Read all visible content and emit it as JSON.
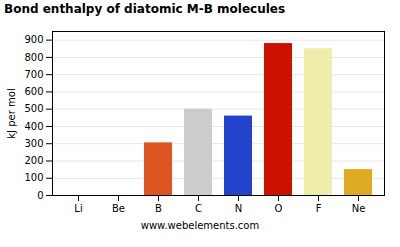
{
  "chart_data": {
    "type": "bar",
    "title": "Bond enthalpy of diatomic M-B molecules",
    "y_label": "kJ per mol",
    "annotations": [
      "www.webelements.com"
    ],
    "categories": [
      "Li",
      "Be",
      "B",
      "C",
      "N",
      "O",
      "F",
      "Ne"
    ],
    "values": [
      0,
      0,
      305,
      500,
      460,
      880,
      850,
      150
    ],
    "colors": [
      "#dd4411",
      "#dd4411",
      "#dd5522",
      "#cccccc",
      "#2244cc",
      "#cc1100",
      "#eeeeaa",
      "#ddaa22"
    ],
    "ylim": [
      0,
      950
    ],
    "yticks": [
      0,
      100,
      200,
      300,
      400,
      500,
      600,
      700,
      800,
      900
    ],
    "grid": true
  }
}
